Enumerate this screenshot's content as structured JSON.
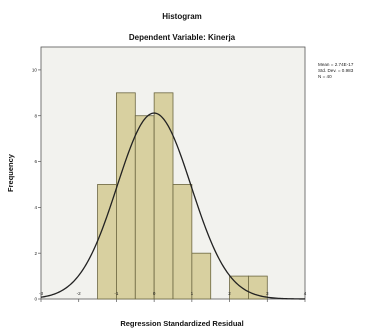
{
  "chart_data": {
    "type": "bar",
    "title": "Histogram",
    "subtitle": "Dependent Variable: Kinerja",
    "xlabel": "Regression Standardized Residual",
    "ylabel": "Frequency",
    "bin_edges": [
      -1.5,
      -1.0,
      -0.5,
      0.0,
      0.5,
      1.0,
      1.5,
      2.0,
      2.5,
      3.0
    ],
    "counts": [
      5,
      9,
      8,
      9,
      5,
      2,
      0,
      1,
      1
    ],
    "xlim": [
      -3,
      4
    ],
    "ylim": [
      0,
      11
    ],
    "xticks": [
      "-3",
      "-2",
      "-1",
      "0",
      "1",
      "2",
      "3",
      "4"
    ],
    "yticks": [
      "0",
      "2",
      "4",
      "6",
      "8",
      "10"
    ],
    "normal_curve": {
      "mean": 0,
      "std": 0.983,
      "n": 40
    },
    "stats_text": [
      "Mean = 2.74E-17",
      "Std. Dev. = 0.983",
      "N = 40"
    ],
    "grid": false,
    "colors": {
      "bar_fill": "#d8d0a0",
      "bar_stroke": "#6b6640",
      "plot_bg": "#f2f2ee",
      "curve": "#222222"
    }
  }
}
